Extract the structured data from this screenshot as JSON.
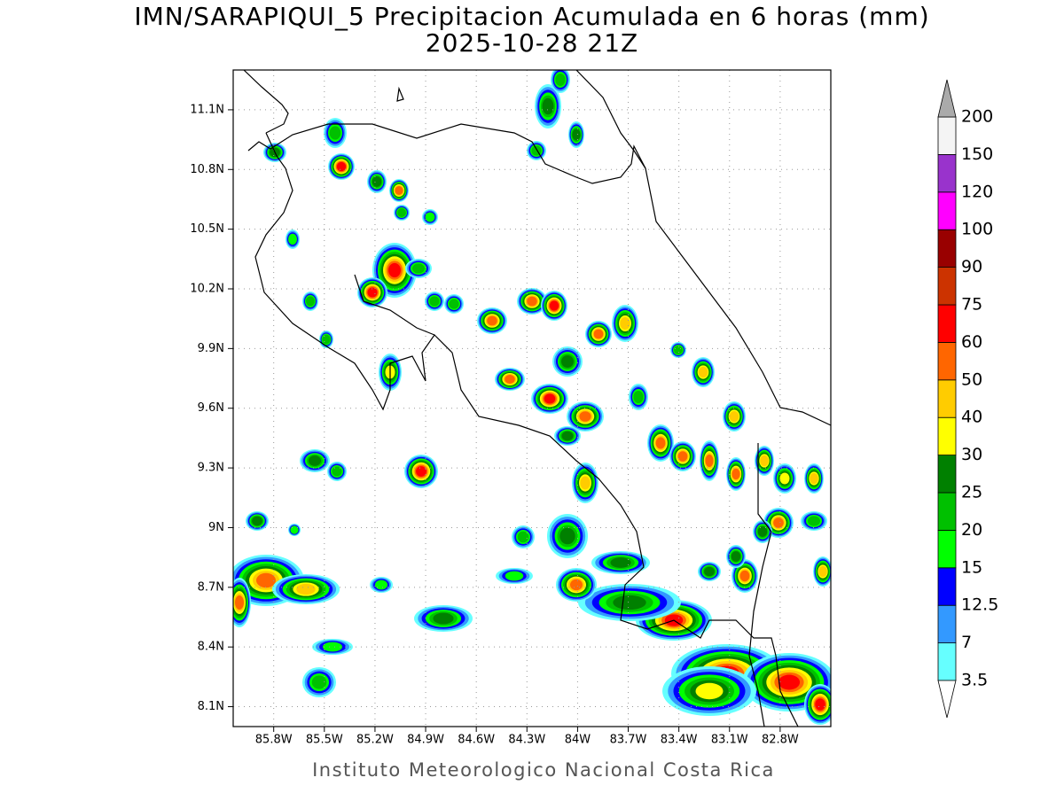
{
  "map": {
    "title": "IMN/SARAPIQUI_5 Precipitacion Acumulada en 6 horas (mm)",
    "subtitle": "2025-10-28 21Z",
    "footer": "Instituto Meteorologico Nacional Costa Rica",
    "lonlim": [
      -86.04,
      -82.5
    ],
    "latlim": [
      8.0,
      11.3
    ],
    "lonticks": [
      {
        "value": -85.8,
        "label": "85.8W"
      },
      {
        "value": -85.5,
        "label": "85.5W"
      },
      {
        "value": -85.2,
        "label": "85.2W"
      },
      {
        "value": -84.9,
        "label": "84.9W"
      },
      {
        "value": -84.6,
        "label": "84.6W"
      },
      {
        "value": -84.3,
        "label": "84.3W"
      },
      {
        "value": -84.0,
        "label": "84W"
      },
      {
        "value": -83.7,
        "label": "83.7W"
      },
      {
        "value": -83.4,
        "label": "83.4W"
      },
      {
        "value": -83.1,
        "label": "83.1W"
      },
      {
        "value": -82.8,
        "label": "82.8W"
      }
    ],
    "latticks": [
      {
        "value": 8.1,
        "label": "8.1N"
      },
      {
        "value": 8.4,
        "label": "8.4N"
      },
      {
        "value": 8.7,
        "label": "8.7N"
      },
      {
        "value": 9.0,
        "label": "9N"
      },
      {
        "value": 9.3,
        "label": "9.3N"
      },
      {
        "value": 9.6,
        "label": "9.6N"
      },
      {
        "value": 9.9,
        "label": "9.9N"
      },
      {
        "value": 10.2,
        "label": "10.2N"
      },
      {
        "value": 10.5,
        "label": "10.5N"
      },
      {
        "value": 10.8,
        "label": "10.8N"
      },
      {
        "value": 11.1,
        "label": "11.1N"
      }
    ],
    "grid": true,
    "colorbar": {
      "levels": [
        3.5,
        7,
        12.5,
        15,
        20,
        25,
        30,
        40,
        50,
        60,
        75,
        90,
        100,
        120,
        150,
        200
      ],
      "colors": [
        "#66ffff",
        "#3399ff",
        "#0000ff",
        "#00ff00",
        "#00c000",
        "#008000",
        "#ffff00",
        "#ffcc00",
        "#ff6600",
        "#ff0000",
        "#cc3300",
        "#990000",
        "#ff00ff",
        "#9933cc",
        "#f4f4f4"
      ],
      "under_color": "#ffffff",
      "over_color": "#aaaaaa"
    }
  }
}
